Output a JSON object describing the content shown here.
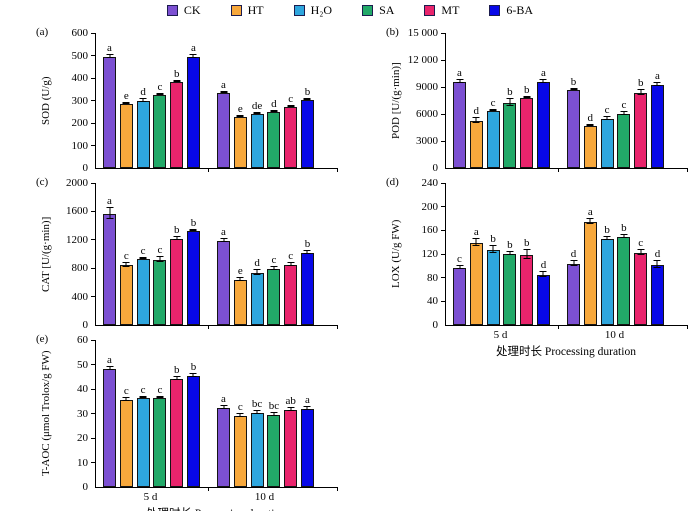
{
  "legend": {
    "items": [
      {
        "label": "CK",
        "color": "#7C50D2"
      },
      {
        "label": "HT",
        "color": "#F7A83C"
      },
      {
        "label": "H₂O",
        "color": "#2EA6DE"
      },
      {
        "label": "SA",
        "color": "#22A968"
      },
      {
        "label": "MT",
        "color": "#E9246C"
      },
      {
        "label": "6-BA",
        "color": "#0808E8"
      }
    ]
  },
  "chart_data": [
    {
      "type": "bar",
      "panel_label": "(a)",
      "ylabel": "SOD (U/g)",
      "ylim": [
        0,
        600
      ],
      "ytick_values": [
        0,
        100,
        200,
        300,
        400,
        500,
        600
      ],
      "ytick_labels": [
        "0",
        "100",
        "200",
        "300",
        "400",
        "500",
        "600"
      ],
      "categories": [
        "5 d",
        "10 d"
      ],
      "xlabel": "",
      "show_xticklabels": false,
      "series": [
        {
          "name": "CK",
          "values": [
            495,
            333
          ],
          "errors": [
            8,
            6
          ],
          "letters": [
            "a",
            "a"
          ]
        },
        {
          "name": "HT",
          "values": [
            283,
            228
          ],
          "errors": [
            5,
            4
          ],
          "letters": [
            "e",
            "e"
          ]
        },
        {
          "name": "H₂O",
          "values": [
            298,
            242
          ],
          "errors": [
            10,
            4
          ],
          "letters": [
            "d",
            "de"
          ]
        },
        {
          "name": "SA",
          "values": [
            323,
            250
          ],
          "errors": [
            6,
            5
          ],
          "letters": [
            "c",
            "d"
          ]
        },
        {
          "name": "MT",
          "values": [
            380,
            273
          ],
          "errors": [
            6,
            6
          ],
          "letters": [
            "b",
            "c"
          ]
        },
        {
          "name": "6-BA",
          "values": [
            494,
            302
          ],
          "errors": [
            8,
            6
          ],
          "letters": [
            "a",
            "b"
          ]
        }
      ]
    },
    {
      "type": "bar",
      "panel_label": "(b)",
      "ylabel": "POD [U/(g·min)]",
      "ylim": [
        0,
        15000
      ],
      "ytick_values": [
        0,
        3000,
        6000,
        9000,
        12000,
        15000
      ],
      "ytick_labels": [
        "0",
        "3000",
        "6000",
        "9000",
        "12 000",
        "15 000"
      ],
      "categories": [
        "5 d",
        "10 d"
      ],
      "xlabel": "",
      "show_xticklabels": false,
      "series": [
        {
          "name": "CK",
          "values": [
            9550,
            8700
          ],
          "errors": [
            200,
            150
          ],
          "letters": [
            "a",
            "b"
          ]
        },
        {
          "name": "HT",
          "values": [
            5200,
            4700
          ],
          "errors": [
            350,
            150
          ],
          "letters": [
            "d",
            "d"
          ]
        },
        {
          "name": "H₂O",
          "values": [
            6350,
            5450
          ],
          "errors": [
            150,
            200
          ],
          "letters": [
            "c",
            "c"
          ]
        },
        {
          "name": "SA",
          "values": [
            7250,
            5950
          ],
          "errors": [
            400,
            250
          ],
          "letters": [
            "b",
            "c"
          ]
        },
        {
          "name": "MT",
          "values": [
            7800,
            8300
          ],
          "errors": [
            150,
            300
          ],
          "letters": [
            "b",
            "b"
          ]
        },
        {
          "name": "6-BA",
          "values": [
            9600,
            9250
          ],
          "errors": [
            250,
            250
          ],
          "letters": [
            "a",
            "a"
          ]
        }
      ]
    },
    {
      "type": "bar",
      "panel_label": "(c)",
      "ylabel": "CAT [U/(g·min)]",
      "ylim": [
        0,
        2000
      ],
      "ytick_values": [
        0,
        400,
        800,
        1200,
        1600,
        2000
      ],
      "ytick_labels": [
        "0",
        "400",
        "800",
        "1200",
        "1600",
        "2000"
      ],
      "categories": [
        "5 d",
        "10 d"
      ],
      "xlabel": "",
      "show_xticklabels": false,
      "series": [
        {
          "name": "CK",
          "values": [
            1560,
            1185
          ],
          "errors": [
            90,
            25
          ],
          "letters": [
            "a",
            "a"
          ]
        },
        {
          "name": "HT",
          "values": [
            840,
            630
          ],
          "errors": [
            35,
            25
          ],
          "letters": [
            "c",
            "e"
          ]
        },
        {
          "name": "H₂O",
          "values": [
            925,
            730
          ],
          "errors": [
            20,
            40
          ],
          "letters": [
            "c",
            "d"
          ]
        },
        {
          "name": "SA",
          "values": [
            915,
            795
          ],
          "errors": [
            45,
            30
          ],
          "letters": [
            "c",
            "c"
          ]
        },
        {
          "name": "MT",
          "values": [
            1210,
            845
          ],
          "errors": [
            30,
            25
          ],
          "letters": [
            "b",
            "c"
          ]
        },
        {
          "name": "6-BA",
          "values": [
            1330,
            1010
          ],
          "errors": [
            20,
            30
          ],
          "letters": [
            "b",
            "b"
          ]
        }
      ]
    },
    {
      "type": "bar",
      "panel_label": "(d)",
      "ylabel": "LOX (U/g FW)",
      "ylim": [
        0,
        240
      ],
      "ytick_values": [
        0,
        40,
        80,
        120,
        160,
        200,
        240
      ],
      "ytick_labels": [
        "0",
        "40",
        "80",
        "120",
        "160",
        "200",
        "240"
      ],
      "categories": [
        "5 d",
        "10 d"
      ],
      "xlabel": "处理时长 Processing duration",
      "show_xticklabels": true,
      "series": [
        {
          "name": "CK",
          "values": [
            97,
            103
          ],
          "errors": [
            4,
            5
          ],
          "letters": [
            "c",
            "d"
          ]
        },
        {
          "name": "HT",
          "values": [
            138,
            174
          ],
          "errors": [
            6,
            5
          ],
          "letters": [
            "a",
            "a"
          ]
        },
        {
          "name": "H₂O",
          "values": [
            127,
            146
          ],
          "errors": [
            6,
            4
          ],
          "letters": [
            "b",
            "b"
          ]
        },
        {
          "name": "SA",
          "values": [
            120,
            148
          ],
          "errors": [
            3,
            4
          ],
          "letters": [
            "b",
            "b"
          ]
        },
        {
          "name": "MT",
          "values": [
            118,
            122
          ],
          "errors": [
            8,
            5
          ],
          "letters": [
            "b",
            "c"
          ]
        },
        {
          "name": "6-BA",
          "values": [
            84,
            102
          ],
          "errors": [
            5,
            6
          ],
          "letters": [
            "d",
            "d"
          ]
        }
      ]
    },
    {
      "type": "bar",
      "panel_label": "(e)",
      "ylabel": "T-AOC (μmol Trolox/g FW)",
      "ylim": [
        0,
        60
      ],
      "ytick_values": [
        0,
        10,
        20,
        30,
        40,
        50,
        60
      ],
      "ytick_labels": [
        "0",
        "10",
        "20",
        "30",
        "40",
        "50",
        "60"
      ],
      "categories": [
        "5 d",
        "10 d"
      ],
      "xlabel": "处理时长 Processing duration",
      "show_xticklabels": true,
      "series": [
        {
          "name": "CK",
          "values": [
            48.2,
            32.3
          ],
          "errors": [
            0.8,
            0.7
          ],
          "letters": [
            "a",
            "a"
          ]
        },
        {
          "name": "HT",
          "values": [
            35.5,
            29.0
          ],
          "errors": [
            0.7,
            0.7
          ],
          "letters": [
            "c",
            "c"
          ]
        },
        {
          "name": "H₂O",
          "values": [
            36.2,
            30.0
          ],
          "errors": [
            0.6,
            0.9
          ],
          "letters": [
            "c",
            "bc"
          ]
        },
        {
          "name": "SA",
          "values": [
            36.5,
            29.5
          ],
          "errors": [
            0.6,
            0.7
          ],
          "letters": [
            "c",
            "bc"
          ]
        },
        {
          "name": "MT",
          "values": [
            44.2,
            31.3
          ],
          "errors": [
            0.9,
            1.0
          ],
          "letters": [
            "b",
            "ab"
          ]
        },
        {
          "name": "6-BA",
          "values": [
            45.5,
            32.0
          ],
          "errors": [
            0.9,
            0.7
          ],
          "letters": [
            "b",
            "a"
          ]
        }
      ]
    }
  ]
}
